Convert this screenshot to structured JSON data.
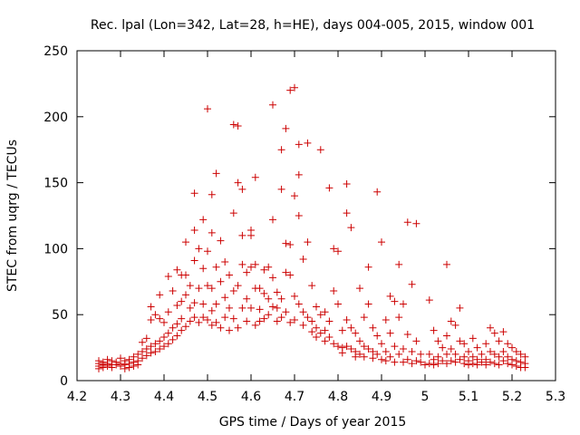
{
  "chart_data": {
    "type": "scatter",
    "title": "Rec. lpal (Lon=342, Lat=28, h=HE), days 004-005, 2015, window 001",
    "xlabel": "GPS time / Days of year 2015",
    "ylabel": "STEC from uqrg / TECUs",
    "xlim": [
      4.2,
      5.3
    ],
    "ylim": [
      0,
      250
    ],
    "xticks": [
      "4.2",
      "4.3",
      "4.4",
      "4.5",
      "4.6",
      "4.7",
      "4.8",
      "4.9",
      "5",
      "5.1",
      "5.2",
      "5.3"
    ],
    "yticks": [
      "0",
      "50",
      "100",
      "150",
      "200",
      "250"
    ],
    "grid": false,
    "series": [
      {
        "name": "STEC",
        "color": "#cc0000",
        "points": [
          [
            4.25,
            15
          ],
          [
            4.25,
            13
          ],
          [
            4.25,
            11
          ],
          [
            4.25,
            9
          ],
          [
            4.26,
            14
          ],
          [
            4.26,
            12
          ],
          [
            4.26,
            10
          ],
          [
            4.27,
            16
          ],
          [
            4.27,
            13
          ],
          [
            4.27,
            11
          ],
          [
            4.28,
            15
          ],
          [
            4.28,
            12
          ],
          [
            4.28,
            10
          ],
          [
            4.29,
            14
          ],
          [
            4.29,
            12
          ],
          [
            4.3,
            17
          ],
          [
            4.3,
            13
          ],
          [
            4.3,
            11
          ],
          [
            4.31,
            15
          ],
          [
            4.31,
            12
          ],
          [
            4.31,
            9
          ],
          [
            4.32,
            16
          ],
          [
            4.32,
            13
          ],
          [
            4.32,
            10
          ],
          [
            4.33,
            18
          ],
          [
            4.33,
            14
          ],
          [
            4.33,
            11
          ],
          [
            4.34,
            20
          ],
          [
            4.34,
            15
          ],
          [
            4.34,
            12
          ],
          [
            4.35,
            29
          ],
          [
            4.35,
            22
          ],
          [
            4.35,
            17
          ],
          [
            4.36,
            32
          ],
          [
            4.36,
            24
          ],
          [
            4.36,
            19
          ],
          [
            4.37,
            56
          ],
          [
            4.37,
            46
          ],
          [
            4.37,
            26
          ],
          [
            4.37,
            21
          ],
          [
            4.38,
            50
          ],
          [
            4.38,
            28
          ],
          [
            4.38,
            22
          ],
          [
            4.39,
            65
          ],
          [
            4.39,
            47
          ],
          [
            4.39,
            30
          ],
          [
            4.39,
            24
          ],
          [
            4.4,
            44
          ],
          [
            4.4,
            33
          ],
          [
            4.4,
            26
          ],
          [
            4.41,
            79
          ],
          [
            4.41,
            52
          ],
          [
            4.41,
            36
          ],
          [
            4.41,
            28
          ],
          [
            4.42,
            68
          ],
          [
            4.42,
            40
          ],
          [
            4.42,
            31
          ],
          [
            4.43,
            84
          ],
          [
            4.43,
            57
          ],
          [
            4.43,
            43
          ],
          [
            4.43,
            34
          ],
          [
            4.44,
            80
          ],
          [
            4.44,
            60
          ],
          [
            4.44,
            47
          ],
          [
            4.44,
            38
          ],
          [
            4.45,
            105
          ],
          [
            4.45,
            80
          ],
          [
            4.45,
            65
          ],
          [
            4.45,
            41
          ],
          [
            4.46,
            72
          ],
          [
            4.46,
            55
          ],
          [
            4.46,
            45
          ],
          [
            4.47,
            142
          ],
          [
            4.47,
            114
          ],
          [
            4.47,
            91
          ],
          [
            4.47,
            59
          ],
          [
            4.47,
            48
          ],
          [
            4.48,
            100
          ],
          [
            4.48,
            70
          ],
          [
            4.48,
            44
          ],
          [
            4.49,
            122
          ],
          [
            4.49,
            85
          ],
          [
            4.49,
            58
          ],
          [
            4.49,
            48
          ],
          [
            4.5,
            206
          ],
          [
            4.5,
            98
          ],
          [
            4.5,
            72
          ],
          [
            4.5,
            46
          ],
          [
            4.51,
            141
          ],
          [
            4.51,
            112
          ],
          [
            4.51,
            70
          ],
          [
            4.51,
            53
          ],
          [
            4.51,
            42
          ],
          [
            4.52,
            157
          ],
          [
            4.52,
            86
          ],
          [
            4.52,
            58
          ],
          [
            4.52,
            44
          ],
          [
            4.53,
            106
          ],
          [
            4.53,
            75
          ],
          [
            4.53,
            40
          ],
          [
            4.54,
            90
          ],
          [
            4.54,
            63
          ],
          [
            4.54,
            48
          ],
          [
            4.55,
            80
          ],
          [
            4.55,
            55
          ],
          [
            4.55,
            38
          ],
          [
            4.56,
            194
          ],
          [
            4.56,
            127
          ],
          [
            4.56,
            68
          ],
          [
            4.56,
            47
          ],
          [
            4.57,
            193
          ],
          [
            4.57,
            150
          ],
          [
            4.57,
            72
          ],
          [
            4.57,
            40
          ],
          [
            4.58,
            145
          ],
          [
            4.58,
            110
          ],
          [
            4.58,
            88
          ],
          [
            4.58,
            55
          ],
          [
            4.59,
            82
          ],
          [
            4.59,
            62
          ],
          [
            4.59,
            45
          ],
          [
            4.6,
            114
          ],
          [
            4.6,
            110
          ],
          [
            4.6,
            86
          ],
          [
            4.6,
            55
          ],
          [
            4.61,
            154
          ],
          [
            4.61,
            88
          ],
          [
            4.61,
            70
          ],
          [
            4.61,
            42
          ],
          [
            4.62,
            70
          ],
          [
            4.62,
            54
          ],
          [
            4.62,
            45
          ],
          [
            4.63,
            84
          ],
          [
            4.63,
            66
          ],
          [
            4.63,
            47
          ],
          [
            4.64,
            86
          ],
          [
            4.64,
            62
          ],
          [
            4.64,
            50
          ],
          [
            4.65,
            209
          ],
          [
            4.65,
            122
          ],
          [
            4.65,
            78
          ],
          [
            4.65,
            56
          ],
          [
            4.66,
            67
          ],
          [
            4.66,
            55
          ],
          [
            4.66,
            45
          ],
          [
            4.67,
            175
          ],
          [
            4.67,
            145
          ],
          [
            4.67,
            62
          ],
          [
            4.67,
            48
          ],
          [
            4.68,
            191
          ],
          [
            4.68,
            104
          ],
          [
            4.68,
            82
          ],
          [
            4.68,
            52
          ],
          [
            4.69,
            220
          ],
          [
            4.69,
            103
          ],
          [
            4.69,
            80
          ],
          [
            4.69,
            44
          ],
          [
            4.7,
            222
          ],
          [
            4.7,
            140
          ],
          [
            4.7,
            64
          ],
          [
            4.7,
            46
          ],
          [
            4.71,
            179
          ],
          [
            4.71,
            156
          ],
          [
            4.71,
            125
          ],
          [
            4.71,
            58
          ],
          [
            4.72,
            92
          ],
          [
            4.72,
            52
          ],
          [
            4.72,
            42
          ],
          [
            4.73,
            180
          ],
          [
            4.73,
            105
          ],
          [
            4.73,
            48
          ],
          [
            4.74,
            72
          ],
          [
            4.74,
            45
          ],
          [
            4.74,
            37
          ],
          [
            4.75,
            56
          ],
          [
            4.75,
            40
          ],
          [
            4.75,
            33
          ],
          [
            4.76,
            175
          ],
          [
            4.76,
            50
          ],
          [
            4.76,
            36
          ],
          [
            4.77,
            52
          ],
          [
            4.77,
            38
          ],
          [
            4.77,
            30
          ],
          [
            4.78,
            146
          ],
          [
            4.78,
            45
          ],
          [
            4.78,
            33
          ],
          [
            4.79,
            100
          ],
          [
            4.79,
            68
          ],
          [
            4.79,
            28
          ],
          [
            4.8,
            98
          ],
          [
            4.8,
            58
          ],
          [
            4.8,
            26
          ],
          [
            4.81,
            38
          ],
          [
            4.81,
            25
          ],
          [
            4.81,
            21
          ],
          [
            4.82,
            149
          ],
          [
            4.82,
            127
          ],
          [
            4.82,
            46
          ],
          [
            4.82,
            26
          ],
          [
            4.83,
            116
          ],
          [
            4.83,
            40
          ],
          [
            4.83,
            24
          ],
          [
            4.84,
            36
          ],
          [
            4.84,
            22
          ],
          [
            4.84,
            18
          ],
          [
            4.85,
            70
          ],
          [
            4.85,
            30
          ],
          [
            4.85,
            20
          ],
          [
            4.86,
            48
          ],
          [
            4.86,
            26
          ],
          [
            4.86,
            18
          ],
          [
            4.87,
            86
          ],
          [
            4.87,
            58
          ],
          [
            4.87,
            24
          ],
          [
            4.88,
            40
          ],
          [
            4.88,
            22
          ],
          [
            4.88,
            17
          ],
          [
            4.89,
            143
          ],
          [
            4.89,
            34
          ],
          [
            4.89,
            20
          ],
          [
            4.9,
            105
          ],
          [
            4.9,
            28
          ],
          [
            4.9,
            16
          ],
          [
            4.91,
            46
          ],
          [
            4.91,
            22
          ],
          [
            4.91,
            15
          ],
          [
            4.92,
            64
          ],
          [
            4.92,
            36
          ],
          [
            4.92,
            18
          ],
          [
            4.93,
            60
          ],
          [
            4.93,
            26
          ],
          [
            4.93,
            14
          ],
          [
            4.94,
            88
          ],
          [
            4.94,
            48
          ],
          [
            4.94,
            20
          ],
          [
            4.95,
            58
          ],
          [
            4.95,
            24
          ],
          [
            4.95,
            14
          ],
          [
            4.96,
            120
          ],
          [
            4.96,
            35
          ],
          [
            4.96,
            16
          ],
          [
            4.97,
            73
          ],
          [
            4.97,
            22
          ],
          [
            4.97,
            13
          ],
          [
            4.98,
            119
          ],
          [
            4.98,
            30
          ],
          [
            4.98,
            15
          ],
          [
            4.99,
            20
          ],
          [
            4.99,
            14
          ],
          [
            5.0,
            12
          ],
          [
            5.01,
            61
          ],
          [
            5.01,
            20
          ],
          [
            5.01,
            13
          ],
          [
            5.02,
            38
          ],
          [
            5.02,
            16
          ],
          [
            5.02,
            12
          ],
          [
            5.03,
            30
          ],
          [
            5.03,
            18
          ],
          [
            5.03,
            13
          ],
          [
            5.04,
            25
          ],
          [
            5.04,
            15
          ],
          [
            5.05,
            88
          ],
          [
            5.05,
            34
          ],
          [
            5.05,
            20
          ],
          [
            5.05,
            13
          ],
          [
            5.06,
            45
          ],
          [
            5.06,
            24
          ],
          [
            5.06,
            15
          ],
          [
            5.07,
            42
          ],
          [
            5.07,
            20
          ],
          [
            5.07,
            14
          ],
          [
            5.08,
            55
          ],
          [
            5.08,
            30
          ],
          [
            5.08,
            16
          ],
          [
            5.09,
            28
          ],
          [
            5.09,
            18
          ],
          [
            5.09,
            13
          ],
          [
            5.1,
            22
          ],
          [
            5.1,
            15
          ],
          [
            5.1,
            12
          ],
          [
            5.11,
            32
          ],
          [
            5.11,
            18
          ],
          [
            5.11,
            13
          ],
          [
            5.12,
            25
          ],
          [
            5.12,
            16
          ],
          [
            5.12,
            12
          ],
          [
            5.13,
            20
          ],
          [
            5.13,
            14
          ],
          [
            5.14,
            28
          ],
          [
            5.14,
            16
          ],
          [
            5.14,
            12
          ],
          [
            5.15,
            40
          ],
          [
            5.15,
            22
          ],
          [
            5.15,
            14
          ],
          [
            5.16,
            36
          ],
          [
            5.16,
            20
          ],
          [
            5.16,
            13
          ],
          [
            5.17,
            30
          ],
          [
            5.17,
            18
          ],
          [
            5.17,
            12
          ],
          [
            5.18,
            37
          ],
          [
            5.18,
            22
          ],
          [
            5.18,
            15
          ],
          [
            5.19,
            28
          ],
          [
            5.19,
            18
          ],
          [
            5.19,
            13
          ],
          [
            5.2,
            25
          ],
          [
            5.2,
            16
          ],
          [
            5.2,
            12
          ],
          [
            5.21,
            22
          ],
          [
            5.21,
            15
          ],
          [
            5.21,
            11
          ],
          [
            5.22,
            20
          ],
          [
            5.22,
            14
          ],
          [
            5.22,
            10
          ],
          [
            5.23,
            18
          ],
          [
            5.23,
            13
          ],
          [
            5.23,
            10
          ]
        ]
      }
    ]
  }
}
